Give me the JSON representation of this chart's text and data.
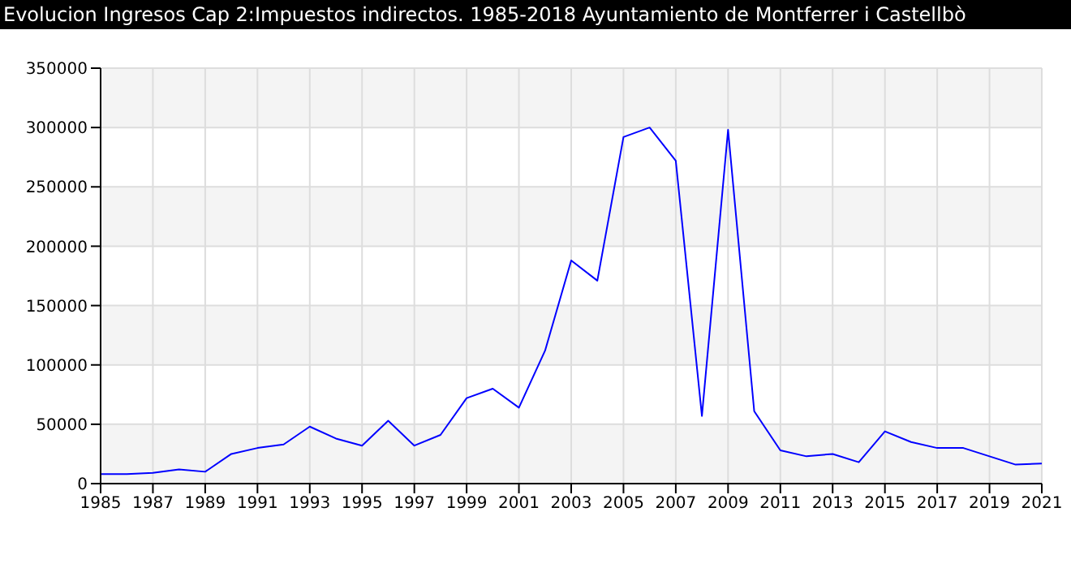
{
  "chart_data": {
    "type": "line",
    "title": "Evolucion Ingresos Cap 2:Impuestos indirectos. 1985-2018 Ayuntamiento de Montferrer i Castellbò",
    "x": [
      1985,
      1986,
      1987,
      1988,
      1989,
      1990,
      1991,
      1992,
      1993,
      1994,
      1995,
      1996,
      1997,
      1998,
      1999,
      2000,
      2001,
      2002,
      2003,
      2004,
      2005,
      2006,
      2007,
      2008,
      2009,
      2010,
      2011,
      2012,
      2013,
      2014,
      2015,
      2016,
      2017,
      2018,
      2019,
      2020,
      2021
    ],
    "series": [
      {
        "color": "#0000ff",
        "values": [
          8000,
          8000,
          9000,
          12000,
          10000,
          25000,
          30000,
          33000,
          48000,
          38000,
          32000,
          53000,
          32000,
          41000,
          72000,
          80000,
          64000,
          112000,
          188000,
          171000,
          292000,
          300000,
          272000,
          57000,
          298000,
          61000,
          28000,
          23000,
          25000,
          18000,
          44000,
          35000,
          30000,
          30000,
          23000,
          16000,
          17000
        ]
      }
    ],
    "xlim": [
      1985,
      2021
    ],
    "xticks": [
      1985,
      1987,
      1989,
      1991,
      1993,
      1995,
      1997,
      1999,
      2001,
      2003,
      2005,
      2007,
      2009,
      2011,
      2013,
      2015,
      2017,
      2019,
      2021
    ],
    "ylim": [
      0,
      350000
    ],
    "yticks": [
      0,
      50000,
      100000,
      150000,
      200000,
      250000,
      300000,
      350000
    ],
    "grid": true,
    "legend": false,
    "marker": "none",
    "line_style": "solid"
  }
}
